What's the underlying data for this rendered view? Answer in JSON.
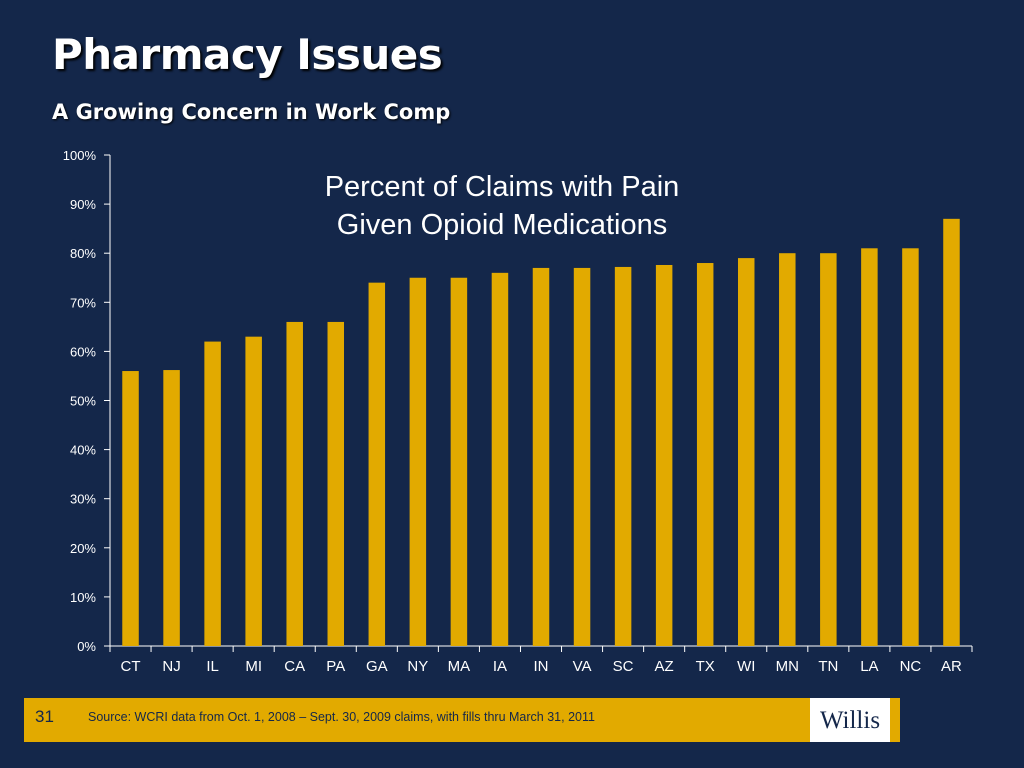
{
  "slide": {
    "title": "Pharmacy Issues",
    "subtitle": "A Growing Concern in Work Comp",
    "slide_number": "31",
    "source_note": "Source: WCRI data from Oct. 1, 2008 – Sept. 30, 2009 claims, with fills thru March 31, 2011",
    "logo_text": "Willis"
  },
  "colors": {
    "background": "#14274a",
    "bar": "#e2aa00",
    "footer_bar": "#e2aa00",
    "axis": "#ffffff",
    "text": "#ffffff"
  },
  "chart_data": {
    "type": "bar",
    "title_lines": [
      "Percent of Claims with Pain",
      "Given Opioid Medications"
    ],
    "categories": [
      "CT",
      "NJ",
      "IL",
      "MI",
      "CA",
      "PA",
      "GA",
      "NY",
      "MA",
      "IA",
      "IN",
      "VA",
      "SC",
      "AZ",
      "TX",
      "WI",
      "MN",
      "TN",
      "LA",
      "NC",
      "AR"
    ],
    "values": [
      56,
      56.2,
      62,
      63,
      66,
      66,
      74,
      75,
      75,
      76,
      77,
      77,
      77.2,
      77.6,
      78,
      79,
      80,
      80,
      81,
      81,
      87
    ],
    "ylim": [
      0,
      100
    ],
    "yticks": [
      0,
      10,
      20,
      30,
      40,
      50,
      60,
      70,
      80,
      90,
      100
    ],
    "ytick_labels": [
      "0%",
      "10%",
      "20%",
      "30%",
      "40%",
      "50%",
      "60%",
      "70%",
      "80%",
      "90%",
      "100%"
    ],
    "xlabel": "",
    "ylabel": "",
    "grid": false,
    "legend": "none"
  }
}
